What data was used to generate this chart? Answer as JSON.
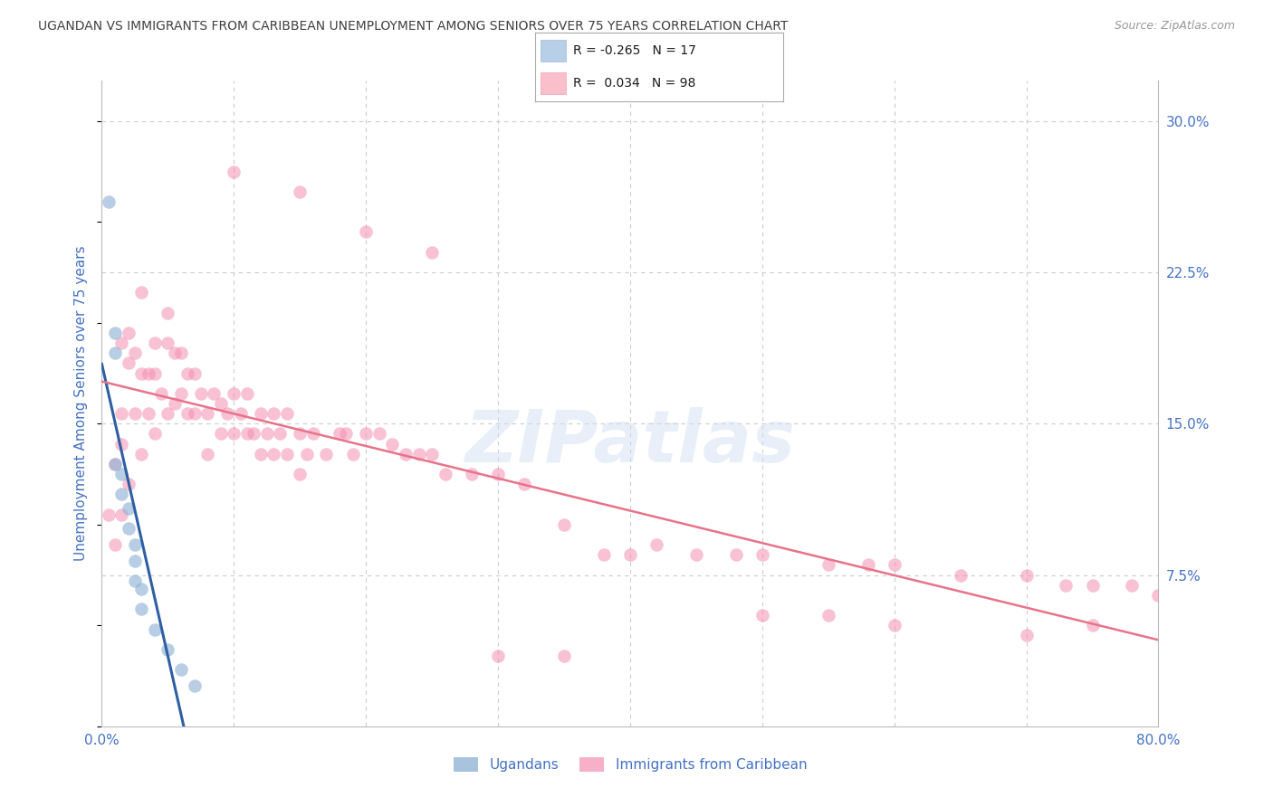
{
  "title": "UGANDAN VS IMMIGRANTS FROM CARIBBEAN UNEMPLOYMENT AMONG SENIORS OVER 75 YEARS CORRELATION CHART",
  "source": "Source: ZipAtlas.com",
  "ylabel": "Unemployment Among Seniors over 75 years",
  "xlim": [
    0.0,
    0.8
  ],
  "ylim": [
    0.0,
    0.32
  ],
  "xticks": [
    0.0,
    0.1,
    0.2,
    0.3,
    0.4,
    0.5,
    0.6,
    0.7,
    0.8
  ],
  "xticklabels": [
    "0.0%",
    "",
    "",
    "",
    "",
    "",
    "",
    "",
    "80.0%"
  ],
  "yticks_right": [
    0.075,
    0.15,
    0.225,
    0.3
  ],
  "yticks_right_labels": [
    "7.5%",
    "15.0%",
    "22.5%",
    "30.0%"
  ],
  "background_color": "#ffffff",
  "grid_color": "#cccccc",
  "title_color": "#404040",
  "axis_label_color": "#4472c4",
  "tick_color": "#4472c4",
  "ugandan_color": "#92b4d6",
  "caribbean_color": "#f48fb1",
  "ugandan_line_color": "#2e5fa3",
  "caribbean_line_color": "#e8738a",
  "series_ugandan_x": [
    0.005,
    0.01,
    0.01,
    0.01,
    0.015,
    0.015,
    0.02,
    0.02,
    0.025,
    0.025,
    0.025,
    0.03,
    0.03,
    0.04,
    0.05,
    0.06,
    0.07
  ],
  "series_ugandan_y": [
    0.26,
    0.195,
    0.185,
    0.13,
    0.125,
    0.115,
    0.108,
    0.098,
    0.09,
    0.082,
    0.072,
    0.068,
    0.058,
    0.048,
    0.038,
    0.028,
    0.02
  ],
  "series_caribbean_x": [
    0.005,
    0.01,
    0.01,
    0.015,
    0.015,
    0.015,
    0.015,
    0.02,
    0.02,
    0.02,
    0.025,
    0.025,
    0.03,
    0.03,
    0.03,
    0.035,
    0.035,
    0.04,
    0.04,
    0.04,
    0.045,
    0.05,
    0.05,
    0.05,
    0.055,
    0.055,
    0.06,
    0.06,
    0.065,
    0.065,
    0.07,
    0.07,
    0.075,
    0.08,
    0.08,
    0.085,
    0.09,
    0.09,
    0.095,
    0.1,
    0.1,
    0.105,
    0.11,
    0.11,
    0.115,
    0.12,
    0.12,
    0.125,
    0.13,
    0.13,
    0.135,
    0.14,
    0.14,
    0.15,
    0.15,
    0.155,
    0.16,
    0.17,
    0.18,
    0.185,
    0.19,
    0.2,
    0.21,
    0.22,
    0.23,
    0.24,
    0.25,
    0.26,
    0.28,
    0.3,
    0.32,
    0.35,
    0.38,
    0.4,
    0.42,
    0.45,
    0.48,
    0.5,
    0.55,
    0.58,
    0.6,
    0.65,
    0.7,
    0.73,
    0.75,
    0.78,
    0.8,
    0.1,
    0.15,
    0.2,
    0.25,
    0.3,
    0.35,
    0.5,
    0.55,
    0.6,
    0.7,
    0.75
  ],
  "series_caribbean_y": [
    0.105,
    0.13,
    0.09,
    0.19,
    0.155,
    0.14,
    0.105,
    0.195,
    0.18,
    0.12,
    0.185,
    0.155,
    0.215,
    0.175,
    0.135,
    0.175,
    0.155,
    0.19,
    0.175,
    0.145,
    0.165,
    0.205,
    0.19,
    0.155,
    0.185,
    0.16,
    0.185,
    0.165,
    0.175,
    0.155,
    0.175,
    0.155,
    0.165,
    0.155,
    0.135,
    0.165,
    0.16,
    0.145,
    0.155,
    0.165,
    0.145,
    0.155,
    0.165,
    0.145,
    0.145,
    0.155,
    0.135,
    0.145,
    0.155,
    0.135,
    0.145,
    0.155,
    0.135,
    0.145,
    0.125,
    0.135,
    0.145,
    0.135,
    0.145,
    0.145,
    0.135,
    0.145,
    0.145,
    0.14,
    0.135,
    0.135,
    0.135,
    0.125,
    0.125,
    0.125,
    0.12,
    0.1,
    0.085,
    0.085,
    0.09,
    0.085,
    0.085,
    0.085,
    0.08,
    0.08,
    0.08,
    0.075,
    0.075,
    0.07,
    0.07,
    0.07,
    0.065,
    0.275,
    0.265,
    0.245,
    0.235,
    0.035,
    0.035,
    0.055,
    0.055,
    0.05,
    0.045,
    0.05
  ]
}
